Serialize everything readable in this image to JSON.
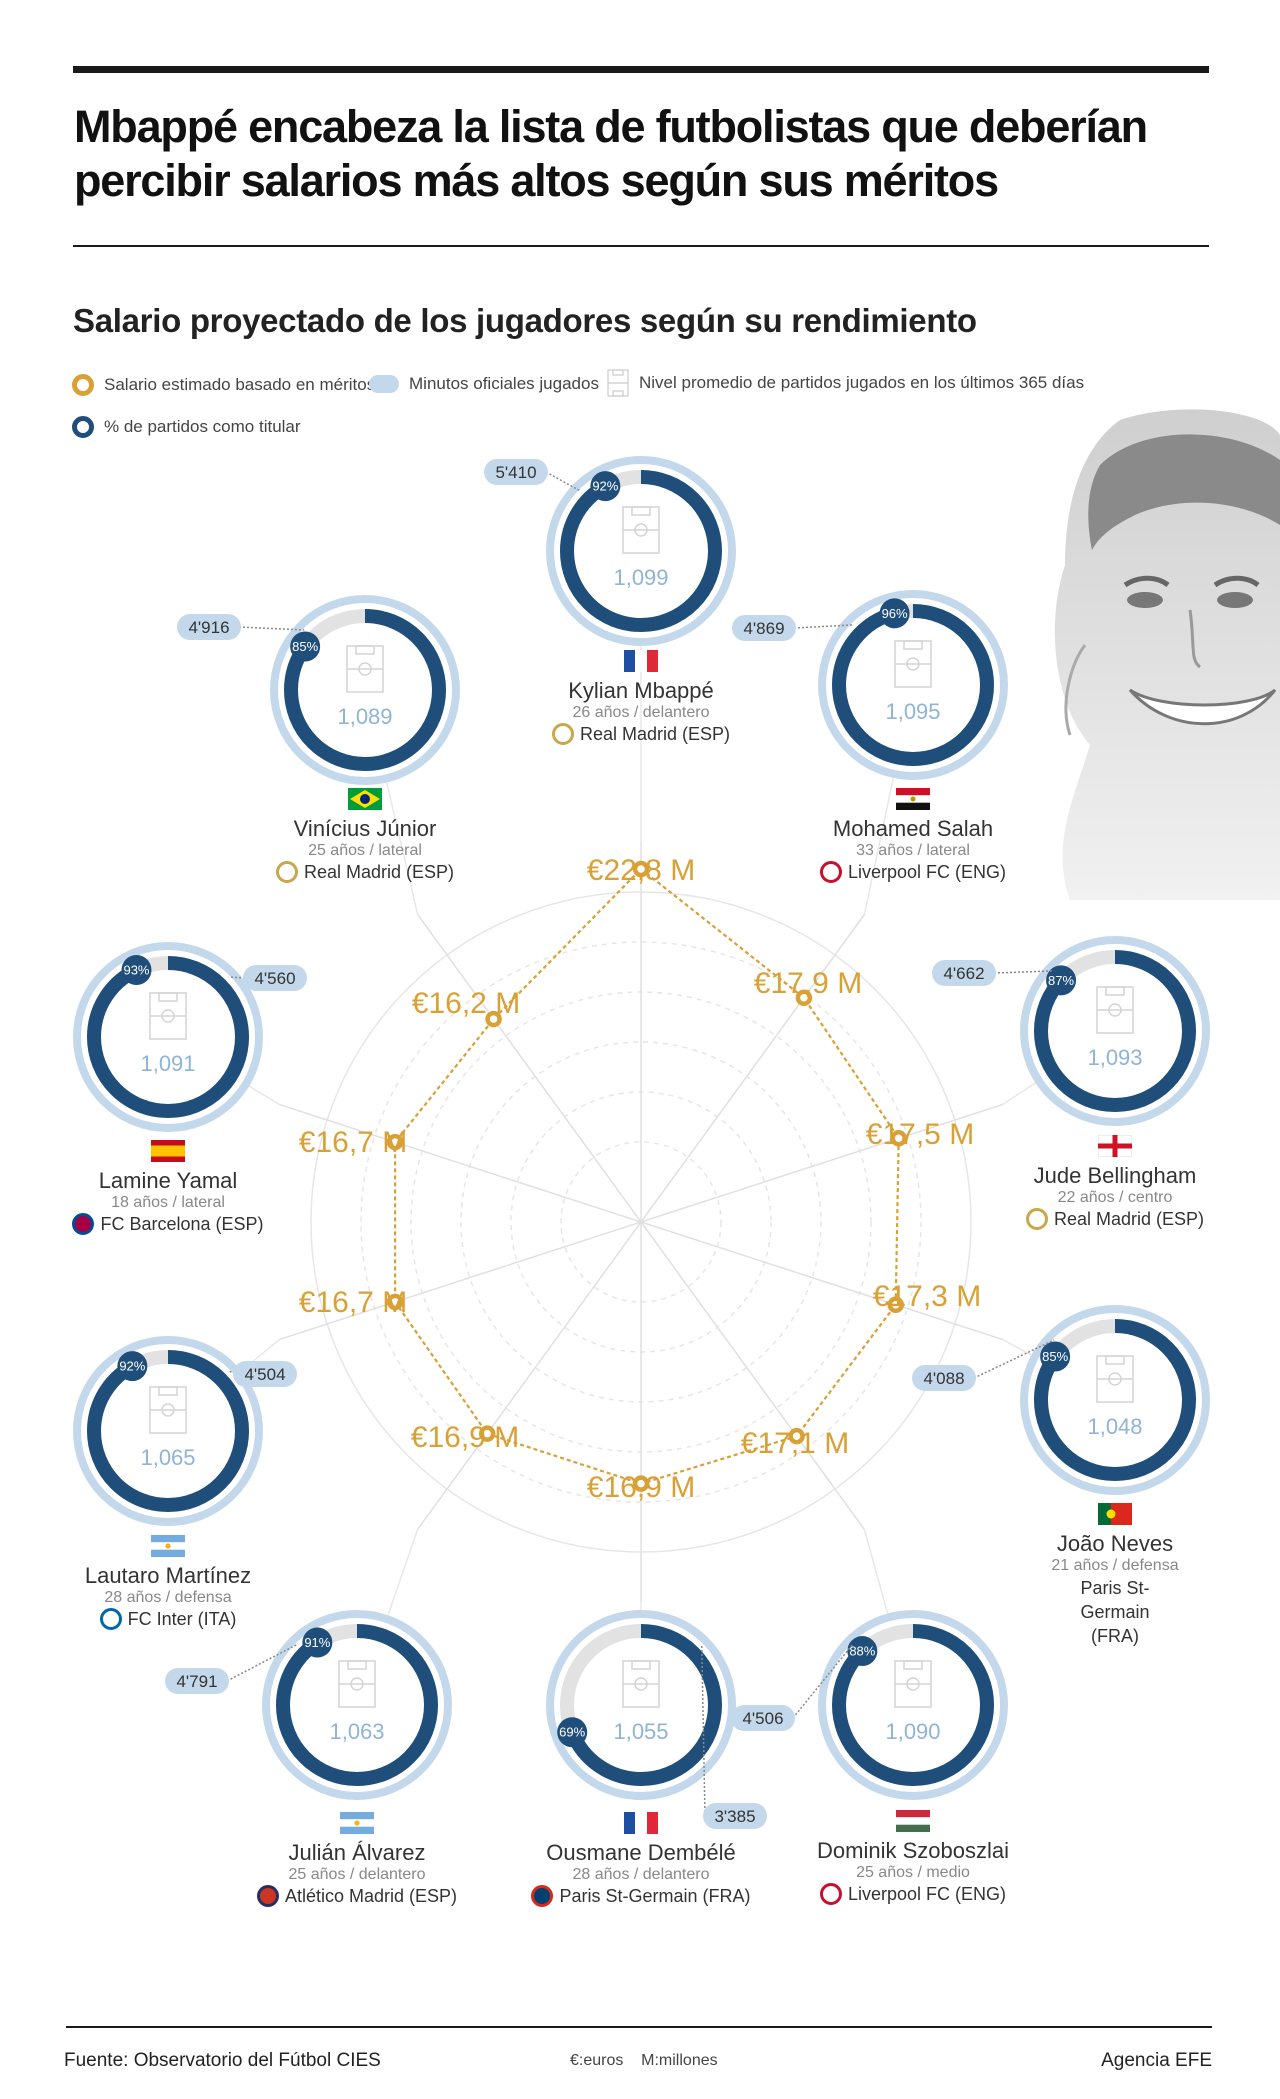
{
  "title": "Mbappé encabeza la lista de futbolistas que deberían percibir salarios más altos según sus méritos",
  "subtitle": "Salario proyectado de los jugadores según su rendimiento",
  "legend": {
    "salary": "Salario estimado basado en méritos",
    "minutes": "Minutos oficiales jugados",
    "level": "Nivel promedio de partidos jugados en los últimos 365 días",
    "starter": "% de partidos como titular"
  },
  "colors": {
    "gold": "#d9a035",
    "navy": "#1f4e7a",
    "light_blue": "#c4d8ec",
    "grey_track": "#e2e2e2",
    "level_text": "#8fb4d6"
  },
  "chart_data": {
    "type": "radar",
    "unit": "M €",
    "players": [
      {
        "name": "Kylian Mbappé",
        "info": "26 años / delantero",
        "club": "Real Madrid (ESP)",
        "flag": "france-flag",
        "salary": 22.8,
        "salary_label": "€22,8 M",
        "minutes": "5'410",
        "starter_pct": 92,
        "starter_label": "92%",
        "level": "1,099"
      },
      {
        "name": "Mohamed Salah",
        "info": "33 años / lateral",
        "club": "Liverpool FC (ENG)",
        "flag": "egypt-flag",
        "salary": 17.9,
        "salary_label": "€17,9 M",
        "minutes": "4'869",
        "starter_pct": 96,
        "starter_label": "96%",
        "level": "1,095"
      },
      {
        "name": "Jude Bellingham",
        "info": "22 años / centro",
        "club": "Real Madrid (ESP)",
        "flag": "england-flag",
        "salary": 17.5,
        "salary_label": "€17,5 M",
        "minutes": "4'662",
        "starter_pct": 87,
        "starter_label": "87%",
        "level": "1,093"
      },
      {
        "name": "João Neves",
        "info": "21 años / defensa",
        "club": "Paris St-Germain (FRA)",
        "flag": "portugal-flag",
        "salary": 17.3,
        "salary_label": "€17,3 M",
        "minutes": "4'088",
        "starter_pct": 85,
        "starter_label": "85%",
        "level": "1,048"
      },
      {
        "name": "Dominik Szoboszlai",
        "info": "25 años / medio",
        "club": "Liverpool FC (ENG)",
        "flag": "hungary-flag",
        "salary": 17.1,
        "salary_label": "€17,1 M",
        "minutes": "4'506",
        "starter_pct": 88,
        "starter_label": "88%",
        "level": "1,090"
      },
      {
        "name": "Ousmane Dembélé",
        "info": "28 años / delantero",
        "club": "Paris St-Germain (FRA)",
        "flag": "france-flag",
        "salary": 16.9,
        "salary_label": "€16,9 M",
        "minutes": "3'385",
        "starter_pct": 69,
        "starter_label": "69%",
        "level": "1,055"
      },
      {
        "name": "Julián Álvarez",
        "info": "25 años / delantero",
        "club": "Atlético Madrid (ESP)",
        "flag": "argentina-flag",
        "salary": 16.9,
        "salary_label": "€16,9 M",
        "minutes": "4'791",
        "starter_pct": 91,
        "starter_label": "91%",
        "level": "1,063"
      },
      {
        "name": "Lautaro Martínez",
        "info": "28 años / defensa",
        "club": "FC Inter (ITA)",
        "flag": "argentina-flag",
        "salary": 16.7,
        "salary_label": "€16,7 M",
        "minutes": "4'504",
        "starter_pct": 92,
        "starter_label": "92%",
        "level": "1,065"
      },
      {
        "name": "Lamine Yamal",
        "info": "18 años / lateral",
        "club": "FC Barcelona (ESP)",
        "flag": "spain-flag",
        "salary": 16.7,
        "salary_label": "€16,7 M",
        "minutes": "4'560",
        "starter_pct": 93,
        "starter_label": "93%",
        "level": "1,091"
      },
      {
        "name": "Vinícius Júnior",
        "info": "25 años / lateral",
        "club": "Real Madrid (ESP)",
        "flag": "brazil-flag",
        "salary": 16.2,
        "salary_label": "€16,2 M",
        "minutes": "4'916",
        "starter_pct": 85,
        "starter_label": "85%",
        "level": "1,089"
      }
    ]
  },
  "footer": {
    "source": "Fuente: Observatorio del Fútbol CIES",
    "units": "€:euros    M:millones",
    "agency": "Agencia EFE"
  }
}
